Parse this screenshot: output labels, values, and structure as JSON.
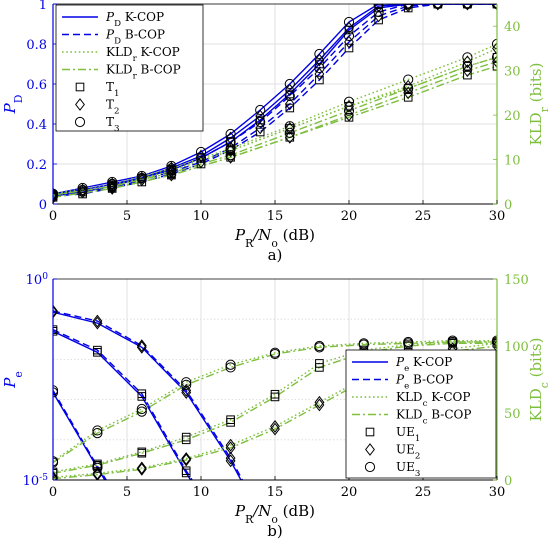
{
  "colors": {
    "pd": "#0000e6",
    "kld": "#7fbf3f",
    "grid": "#d9d9d9",
    "axis": "#000000"
  },
  "chart_data": [
    {
      "type": "line",
      "caption": "a)",
      "xlabel_parts": [
        "P",
        "R",
        "/N",
        "o",
        " (dB)"
      ],
      "ylabel_left_parts": [
        "P",
        "D"
      ],
      "ylabel_right_parts": [
        "KLD",
        "r",
        " (bits)"
      ],
      "xlim": [
        0,
        30
      ],
      "ylim_left": [
        0,
        1
      ],
      "ylim_right": [
        0,
        45
      ],
      "x_ticks": [
        0,
        5,
        10,
        15,
        20,
        25,
        30
      ],
      "y_left_ticks": [
        0,
        0.2,
        0.4,
        0.6,
        0.8,
        1
      ],
      "y_left_tick_labels": [
        "0",
        "0.2",
        "0.4",
        "0.6",
        "0.8",
        "1"
      ],
      "y_right_ticks": [
        0,
        10,
        20,
        30,
        40
      ],
      "grid": true,
      "legend": [
        {
          "parts": [
            "P",
            "D",
            " K-COP"
          ],
          "style": "solid",
          "axis": "left"
        },
        {
          "parts": [
            "P",
            "D",
            " B-COP"
          ],
          "style": "dashed",
          "axis": "left"
        },
        {
          "parts": [
            "KLD",
            "r",
            " K-COP"
          ],
          "style": "dotted",
          "axis": "right"
        },
        {
          "parts": [
            "KLD",
            "r",
            " B-COP"
          ],
          "style": "dashdot",
          "axis": "right"
        },
        {
          "parts": [
            "T",
            "1",
            ""
          ],
          "marker": "square"
        },
        {
          "parts": [
            "T",
            "2",
            ""
          ],
          "marker": "diamond"
        },
        {
          "parts": [
            "T",
            "3",
            ""
          ],
          "marker": "circle"
        }
      ],
      "series": [
        {
          "name": "PD K-COP T1",
          "axis": "left",
          "style": "solid",
          "marker": "square",
          "x": [
            0,
            2,
            4,
            6,
            8,
            10,
            12,
            14,
            16,
            18,
            20,
            22,
            24,
            26,
            28,
            30
          ],
          "y": [
            0.04,
            0.06,
            0.09,
            0.13,
            0.17,
            0.23,
            0.31,
            0.42,
            0.55,
            0.7,
            0.87,
            0.98,
            1,
            1,
            1,
            1
          ]
        },
        {
          "name": "PD K-COP T2",
          "axis": "left",
          "style": "solid",
          "marker": "diamond",
          "x": [
            0,
            2,
            4,
            6,
            8,
            10,
            12,
            14,
            16,
            18,
            20,
            22,
            24,
            26,
            28,
            30
          ],
          "y": [
            0.05,
            0.07,
            0.1,
            0.13,
            0.18,
            0.24,
            0.33,
            0.44,
            0.57,
            0.72,
            0.88,
            0.99,
            1,
            1,
            1,
            1
          ]
        },
        {
          "name": "PD K-COP T3",
          "axis": "left",
          "style": "solid",
          "marker": "circle",
          "x": [
            0,
            2,
            4,
            6,
            8,
            10,
            12,
            14,
            16,
            18,
            20,
            22,
            24,
            26,
            28,
            30
          ],
          "y": [
            0.05,
            0.08,
            0.11,
            0.14,
            0.19,
            0.26,
            0.35,
            0.47,
            0.6,
            0.75,
            0.91,
            1,
            1,
            1,
            1,
            1
          ]
        },
        {
          "name": "PD B-COP T1",
          "axis": "left",
          "style": "dashed",
          "marker": "square",
          "x": [
            0,
            2,
            4,
            6,
            8,
            10,
            12,
            14,
            16,
            18,
            20,
            22,
            24,
            26,
            28,
            30
          ],
          "y": [
            0.04,
            0.05,
            0.08,
            0.11,
            0.15,
            0.2,
            0.27,
            0.36,
            0.48,
            0.62,
            0.78,
            0.92,
            0.98,
            1,
            1,
            1
          ]
        },
        {
          "name": "PD B-COP T2",
          "axis": "left",
          "style": "dashed",
          "marker": "diamond",
          "x": [
            0,
            2,
            4,
            6,
            8,
            10,
            12,
            14,
            16,
            18,
            20,
            22,
            24,
            26,
            28,
            30
          ],
          "y": [
            0.04,
            0.06,
            0.08,
            0.12,
            0.16,
            0.21,
            0.28,
            0.38,
            0.5,
            0.65,
            0.81,
            0.94,
            0.99,
            1,
            1,
            1
          ]
        },
        {
          "name": "PD B-COP T3",
          "axis": "left",
          "style": "dashed",
          "marker": "circle",
          "x": [
            0,
            2,
            4,
            6,
            8,
            10,
            12,
            14,
            16,
            18,
            20,
            22,
            24,
            26,
            28,
            30
          ],
          "y": [
            0.05,
            0.07,
            0.1,
            0.13,
            0.17,
            0.23,
            0.31,
            0.41,
            0.54,
            0.68,
            0.84,
            0.96,
            1,
            1,
            1,
            1
          ]
        },
        {
          "name": "KLDr K-COP T1",
          "axis": "right",
          "style": "dotted",
          "marker": "square",
          "x": [
            0,
            4,
            8,
            12,
            16,
            20,
            24,
            28,
            30
          ],
          "y": [
            2,
            4,
            7.5,
            12,
            17,
            22,
            26,
            31,
            33
          ]
        },
        {
          "name": "KLDr K-COP T2",
          "axis": "right",
          "style": "dotted",
          "marker": "diamond",
          "x": [
            0,
            4,
            8,
            12,
            16,
            20,
            24,
            28,
            30
          ],
          "y": [
            2,
            4,
            7.5,
            12,
            17,
            22,
            26.5,
            32,
            35
          ]
        },
        {
          "name": "KLDr K-COP T3",
          "axis": "right",
          "style": "dotted",
          "marker": "circle",
          "x": [
            0,
            4,
            8,
            12,
            16,
            20,
            24,
            28,
            30
          ],
          "y": [
            2.3,
            4.5,
            8,
            12.5,
            17.5,
            23,
            28,
            33,
            36
          ]
        },
        {
          "name": "KLDr B-COP T1",
          "axis": "right",
          "style": "dashdot",
          "marker": "square",
          "x": [
            0,
            4,
            8,
            12,
            16,
            20,
            24,
            28,
            30
          ],
          "y": [
            1.5,
            3.5,
            6.5,
            10.5,
            15,
            19.5,
            24,
            29,
            31
          ]
        },
        {
          "name": "KLDr B-COP T2",
          "axis": "right",
          "style": "dashdot",
          "marker": "diamond",
          "x": [
            0,
            4,
            8,
            12,
            16,
            20,
            24,
            28,
            30
          ],
          "y": [
            1.5,
            3.5,
            6.5,
            10.5,
            15,
            20,
            25,
            30,
            32
          ]
        },
        {
          "name": "KLDr B-COP T3",
          "axis": "right",
          "style": "dashdot",
          "marker": "circle",
          "x": [
            0,
            4,
            8,
            12,
            16,
            20,
            24,
            28,
            30
          ],
          "y": [
            2,
            4,
            7,
            11,
            16,
            21,
            26,
            31,
            33
          ]
        }
      ]
    },
    {
      "type": "line",
      "caption": "b)",
      "xlabel_parts": [
        "P",
        "R",
        "/N",
        "o",
        " (dB)"
      ],
      "ylabel_left_parts": [
        "P",
        "e",
        ""
      ],
      "ylabel_right_parts": [
        "KLD",
        "c",
        " (bits)"
      ],
      "xlim": [
        0,
        30
      ],
      "ylim_left": [
        1e-05,
        1
      ],
      "y_left_scale": "log",
      "ylim_right": [
        0,
        150
      ],
      "x_ticks": [
        0,
        5,
        10,
        15,
        20,
        25,
        30
      ],
      "y_left_ticks": [
        1e-05,
        1
      ],
      "y_left_tick_labels": [
        [
          "10",
          "-5"
        ],
        [
          "10",
          "0"
        ]
      ],
      "y_right_ticks": [
        0,
        50,
        100,
        150
      ],
      "grid": true,
      "legend": [
        {
          "parts": [
            "P",
            "e",
            " K-COP"
          ],
          "style": "solid",
          "axis": "left"
        },
        {
          "parts": [
            "P",
            "e",
            " B-COP"
          ],
          "style": "dashed",
          "axis": "left"
        },
        {
          "parts": [
            "KLD",
            "c",
            " K-COP"
          ],
          "style": "dotted",
          "axis": "right"
        },
        {
          "parts": [
            "KLD",
            "c",
            " B-COP"
          ],
          "style": "dashdot",
          "axis": "right"
        },
        {
          "parts": [
            "UE",
            "1",
            ""
          ],
          "marker": "square"
        },
        {
          "parts": [
            "UE",
            "2",
            ""
          ],
          "marker": "diamond"
        },
        {
          "parts": [
            "UE",
            "3",
            ""
          ],
          "marker": "circle"
        }
      ],
      "series": [
        {
          "name": "Pe K-COP UE2",
          "axis": "left",
          "style": "solid",
          "marker": "diamond",
          "x": [
            0,
            3,
            6,
            9,
            12,
            12.7
          ],
          "y": [
            0.15,
            0.08,
            0.02,
            0.0015,
            3e-05,
            1e-05
          ]
        },
        {
          "name": "Pe B-COP UE2",
          "axis": "left",
          "style": "dashed",
          "marker": "diamond",
          "x": [
            0,
            3,
            6,
            9,
            12,
            12.8
          ],
          "y": [
            0.16,
            0.09,
            0.022,
            0.0017,
            3.5e-05,
            1e-05
          ]
        },
        {
          "name": "Pe K-COP UE1",
          "axis": "left",
          "style": "solid",
          "marker": "square",
          "x": [
            0,
            3,
            6,
            9,
            9.3
          ],
          "y": [
            0.05,
            0.015,
            0.0012,
            1.5e-05,
            1e-05
          ]
        },
        {
          "name": "Pe B-COP UE1",
          "axis": "left",
          "style": "dashed",
          "marker": "square",
          "x": [
            0,
            3,
            6,
            9,
            9.4
          ],
          "y": [
            0.055,
            0.017,
            0.0014,
            1.7e-05,
            1e-05
          ]
        },
        {
          "name": "Pe K-COP UE3",
          "axis": "left",
          "style": "solid",
          "marker": "circle",
          "x": [
            0,
            3,
            3.5
          ],
          "y": [
            0.0015,
            2e-05,
            1e-05
          ]
        },
        {
          "name": "Pe B-COP UE3",
          "axis": "left",
          "style": "dashed",
          "marker": "circle",
          "x": [
            0,
            3,
            3.6
          ],
          "y": [
            0.0017,
            2.2e-05,
            1e-05
          ]
        },
        {
          "name": "KLDc K-COP UE3",
          "axis": "right",
          "style": "dotted",
          "marker": "circle",
          "x": [
            0,
            3,
            6,
            9,
            12,
            15,
            18,
            21,
            24,
            27,
            30
          ],
          "y": [
            14,
            37,
            53,
            73,
            86,
            95,
            100,
            102,
            103,
            104,
            104
          ]
        },
        {
          "name": "KLDc B-COP UE3",
          "axis": "right",
          "style": "dashdot",
          "marker": "circle",
          "x": [
            0,
            3,
            6,
            9,
            12,
            15,
            18,
            21,
            24,
            27,
            30
          ],
          "y": [
            13,
            35,
            51,
            71,
            84,
            94,
            99,
            101,
            102,
            103,
            103
          ]
        },
        {
          "name": "KLDc K-COP UE1",
          "axis": "right",
          "style": "dotted",
          "marker": "square",
          "x": [
            0,
            3,
            6,
            9,
            12,
            15,
            18,
            21,
            24,
            27,
            30
          ],
          "y": [
            6,
            12,
            21,
            32,
            45,
            64,
            87,
            97,
            101,
            103,
            103
          ]
        },
        {
          "name": "KLDc B-COP UE1",
          "axis": "right",
          "style": "dashdot",
          "marker": "square",
          "x": [
            0,
            3,
            6,
            9,
            12,
            15,
            18,
            21,
            24,
            27,
            30
          ],
          "y": [
            5,
            11,
            20,
            30,
            43,
            62,
            84,
            95,
            100,
            102,
            102
          ]
        },
        {
          "name": "KLDc K-COP UE2",
          "axis": "right",
          "style": "dotted",
          "marker": "diamond",
          "x": [
            0,
            3,
            6,
            9,
            12,
            15,
            18,
            21,
            24,
            27,
            30
          ],
          "y": [
            2,
            5,
            9,
            16,
            26,
            40,
            58,
            76,
            90,
            98,
            102
          ]
        },
        {
          "name": "KLDc B-COP UE2",
          "axis": "right",
          "style": "dashdot",
          "marker": "diamond",
          "x": [
            0,
            3,
            6,
            9,
            12,
            15,
            18,
            21,
            24,
            27,
            30
          ],
          "y": [
            1,
            4,
            8,
            15,
            24,
            38,
            56,
            74,
            88,
            96,
            100
          ]
        }
      ]
    }
  ]
}
